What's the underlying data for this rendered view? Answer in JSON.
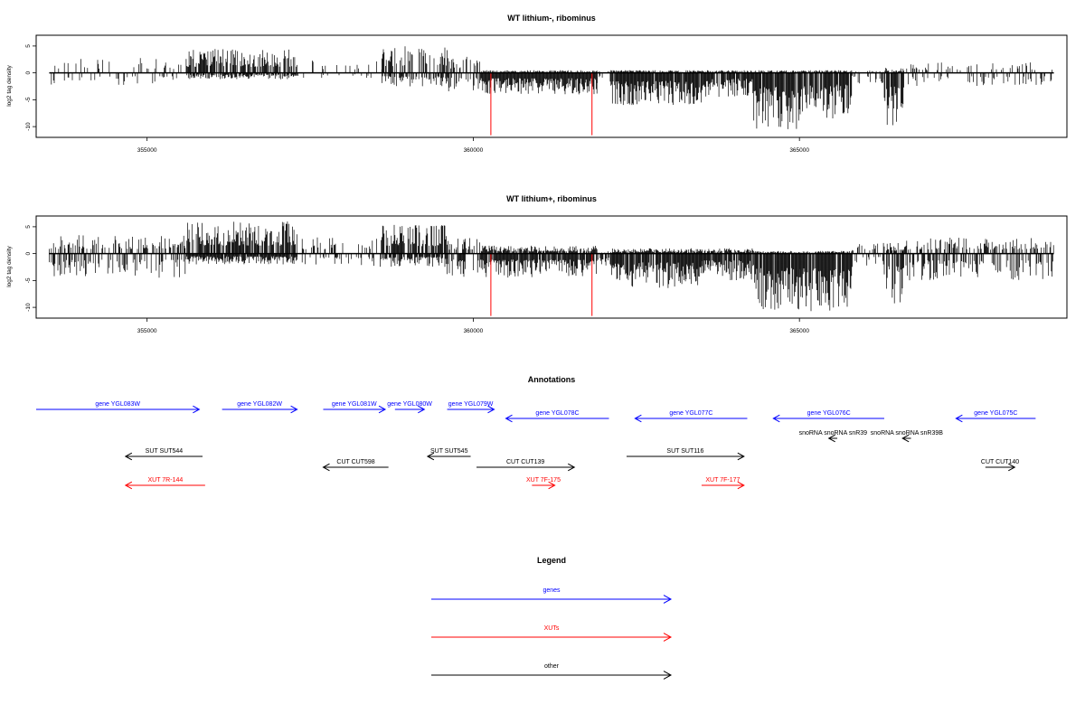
{
  "colors": {
    "gene": "#0000ff",
    "xut": "#ff0000",
    "other": "#000000",
    "marker": "#ff0000",
    "bar": "#000000"
  },
  "chart_data": [
    {
      "type": "bar",
      "title": "WT lithium-, ribominus",
      "ylabel": "log2 tag density",
      "xlim": [
        353300,
        369100
      ],
      "ylim": [
        -12,
        7
      ],
      "x_ticks": [
        355000,
        360000,
        365000
      ],
      "y_ticks": [
        5,
        0,
        -5,
        -10
      ],
      "y_tick_labels": [
        "5",
        "0",
        "-5",
        "-10"
      ],
      "markers": [
        {
          "x": 360270,
          "value": -11.6
        },
        {
          "x": 361820,
          "value": -11.6
        }
      ],
      "signal_segments": [
        {
          "start": 353500,
          "end": 355600,
          "pos": 2.8,
          "neg": -2.5,
          "density": 0.22
        },
        {
          "start": 355600,
          "end": 357300,
          "pos": 4.5,
          "neg": -1.2,
          "density": 0.75
        },
        {
          "start": 357300,
          "end": 358600,
          "pos": 2.5,
          "neg": -1.0,
          "density": 0.1
        },
        {
          "start": 358600,
          "end": 359600,
          "pos": 5.0,
          "neg": -2.5,
          "density": 0.6
        },
        {
          "start": 359600,
          "end": 360100,
          "pos": 3.0,
          "neg": -3.5,
          "density": 0.35
        },
        {
          "start": 360100,
          "end": 361900,
          "pos": 0.5,
          "neg": -4.0,
          "density": 0.95
        },
        {
          "start": 361900,
          "end": 362100,
          "pos": 0.3,
          "neg": -2.0,
          "density": 0.2
        },
        {
          "start": 362100,
          "end": 363500,
          "pos": 0.5,
          "neg": -6.0,
          "density": 0.95
        },
        {
          "start": 363500,
          "end": 364300,
          "pos": 0.5,
          "neg": -4.5,
          "density": 0.85
        },
        {
          "start": 364300,
          "end": 365000,
          "pos": 0.5,
          "neg": -10.5,
          "density": 0.9
        },
        {
          "start": 365000,
          "end": 365800,
          "pos": 0.5,
          "neg": -8.5,
          "density": 0.9
        },
        {
          "start": 365800,
          "end": 366300,
          "pos": 0.5,
          "neg": -2.0,
          "density": 0.3
        },
        {
          "start": 366300,
          "end": 366600,
          "pos": 1.0,
          "neg": -10.0,
          "density": 0.8
        },
        {
          "start": 366600,
          "end": 368900,
          "pos": 2.0,
          "neg": -2.5,
          "density": 0.2
        }
      ]
    },
    {
      "type": "bar",
      "title": "WT lithium+, ribominus",
      "ylabel": "log2 tag density",
      "xlim": [
        353300,
        369100
      ],
      "ylim": [
        -12,
        7
      ],
      "x_ticks": [
        355000,
        360000,
        365000
      ],
      "y_ticks": [
        5,
        0,
        -5,
        -10
      ],
      "y_tick_labels": [
        "5",
        "0",
        "-5",
        "-10"
      ],
      "markers": [
        {
          "x": 360270,
          "value": -11.6
        },
        {
          "x": 361820,
          "value": -11.6
        }
      ],
      "signal_segments": [
        {
          "start": 353500,
          "end": 355600,
          "pos": 3.5,
          "neg": -4.5,
          "density": 0.45
        },
        {
          "start": 355600,
          "end": 357300,
          "pos": 6.0,
          "neg": -2.0,
          "density": 0.95
        },
        {
          "start": 357300,
          "end": 358600,
          "pos": 3.0,
          "neg": -2.5,
          "density": 0.25
        },
        {
          "start": 358600,
          "end": 359600,
          "pos": 5.5,
          "neg": -2.5,
          "density": 0.85
        },
        {
          "start": 359600,
          "end": 360100,
          "pos": 3.0,
          "neg": -4.5,
          "density": 0.5
        },
        {
          "start": 360100,
          "end": 361900,
          "pos": 1.5,
          "neg": -4.5,
          "density": 0.9
        },
        {
          "start": 361900,
          "end": 362100,
          "pos": 0.5,
          "neg": -3.0,
          "density": 0.4
        },
        {
          "start": 362100,
          "end": 363500,
          "pos": 1.0,
          "neg": -6.5,
          "density": 0.95
        },
        {
          "start": 363500,
          "end": 364300,
          "pos": 1.0,
          "neg": -5.0,
          "density": 0.9
        },
        {
          "start": 364300,
          "end": 365000,
          "pos": 0.5,
          "neg": -10.5,
          "density": 0.95
        },
        {
          "start": 365000,
          "end": 365800,
          "pos": 0.5,
          "neg": -11.0,
          "density": 0.95
        },
        {
          "start": 365800,
          "end": 366300,
          "pos": 2.0,
          "neg": -2.5,
          "density": 0.3
        },
        {
          "start": 366300,
          "end": 366600,
          "pos": 2.0,
          "neg": -9.5,
          "density": 0.8
        },
        {
          "start": 366600,
          "end": 368900,
          "pos": 3.0,
          "neg": -5.0,
          "density": 0.45
        }
      ]
    },
    {
      "type": "diagram",
      "title": "Annotations",
      "features": [
        {
          "label": "gene YGL083W",
          "kind": "gene",
          "start": 353300,
          "end": 355800,
          "strand": "+",
          "row": 0
        },
        {
          "label": "gene YGL082W",
          "kind": "gene",
          "start": 356150,
          "end": 357300,
          "strand": "+",
          "row": 0
        },
        {
          "label": "gene YGL081W",
          "kind": "gene",
          "start": 357700,
          "end": 358650,
          "strand": "+",
          "row": 0
        },
        {
          "label": "gene YGL080W",
          "kind": "gene",
          "start": 358800,
          "end": 359250,
          "strand": "+",
          "row": 0
        },
        {
          "label": "gene YGL079W",
          "kind": "gene",
          "start": 359600,
          "end": 360320,
          "strand": "+",
          "row": 0
        },
        {
          "label": "gene YGL078C",
          "kind": "gene",
          "start": 360500,
          "end": 362080,
          "strand": "-",
          "row": 1
        },
        {
          "label": "gene YGL077C",
          "kind": "gene",
          "start": 362480,
          "end": 364200,
          "strand": "-",
          "row": 1
        },
        {
          "label": "gene YGL076C",
          "kind": "gene",
          "start": 364600,
          "end": 366300,
          "strand": "-",
          "row": 1
        },
        {
          "label": "gene YGL075C",
          "kind": "gene",
          "start": 367400,
          "end": 368620,
          "strand": "-",
          "row": 1
        },
        {
          "label": "snoRNA snoRNA snR39",
          "kind": "other",
          "start": 365450,
          "end": 365580,
          "strand": "-",
          "row": 2
        },
        {
          "label": "snoRNA snoRNA snR39B",
          "kind": "other",
          "start": 366580,
          "end": 366710,
          "strand": "-",
          "row": 2
        },
        {
          "label": "SUT SUT544",
          "kind": "other",
          "start": 354670,
          "end": 355850,
          "strand": "-",
          "row": 3
        },
        {
          "label": "SUT SUT545",
          "kind": "other",
          "start": 359300,
          "end": 359960,
          "strand": "-",
          "row": 3
        },
        {
          "label": "SUT SUT116",
          "kind": "other",
          "start": 362350,
          "end": 364150,
          "strand": "+",
          "row": 3
        },
        {
          "label": "CUT CUT139",
          "kind": "other",
          "start": 360050,
          "end": 361550,
          "strand": "+",
          "row": 4
        },
        {
          "label": "CUT CUT598",
          "kind": "other",
          "start": 357700,
          "end": 358700,
          "strand": "-",
          "row": 4
        },
        {
          "label": "CUT CUT140",
          "kind": "other",
          "start": 367850,
          "end": 368300,
          "strand": "+",
          "row": 4
        },
        {
          "label": "XUT 7F-175",
          "kind": "xut",
          "start": 360900,
          "end": 361250,
          "strand": "+",
          "row": 5
        },
        {
          "label": "XUT 7F-177",
          "kind": "xut",
          "start": 363500,
          "end": 364150,
          "strand": "+",
          "row": 5
        },
        {
          "label": "XUT 7R-144",
          "kind": "xut",
          "start": 354670,
          "end": 355890,
          "strand": "-",
          "row": 5
        }
      ]
    }
  ],
  "legend": {
    "title": "Legend",
    "items": [
      {
        "label": "genes",
        "kind": "gene"
      },
      {
        "label": "XUTs",
        "kind": "xut"
      },
      {
        "label": "other",
        "kind": "other"
      }
    ]
  }
}
